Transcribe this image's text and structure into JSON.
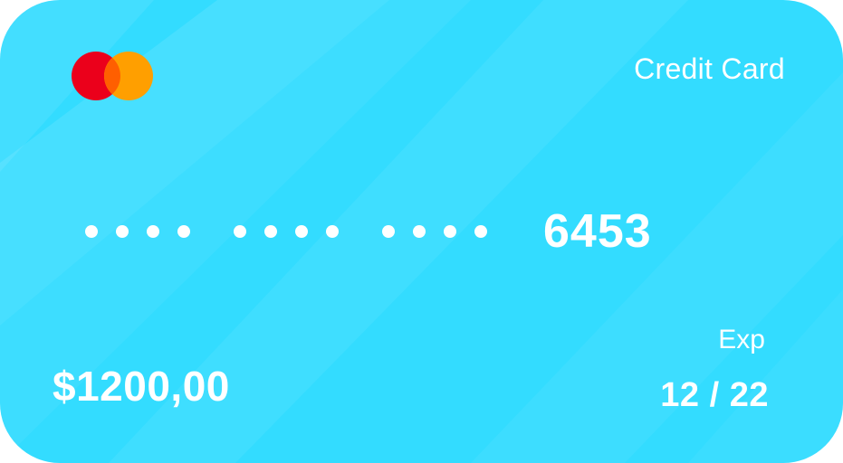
{
  "card": {
    "title": "Credit Card",
    "masked_groups": [
      [
        "•",
        "•",
        "•",
        "•"
      ],
      [
        "•",
        "•",
        "•",
        "•"
      ],
      [
        "•",
        "•",
        "•",
        "•"
      ]
    ],
    "last4": "6453",
    "exp_label": "Exp",
    "exp_date": "12 / 22",
    "balance": "$1200,00",
    "brand_icon": "mastercard-logo-icon"
  },
  "colors": {
    "card_background": "#33dcff",
    "stripe_light": "#ffffff",
    "logo_red": "#eb001b",
    "logo_orange": "#ff9f00",
    "logo_overlap": "#ff5f00",
    "text": "#ffffff"
  }
}
